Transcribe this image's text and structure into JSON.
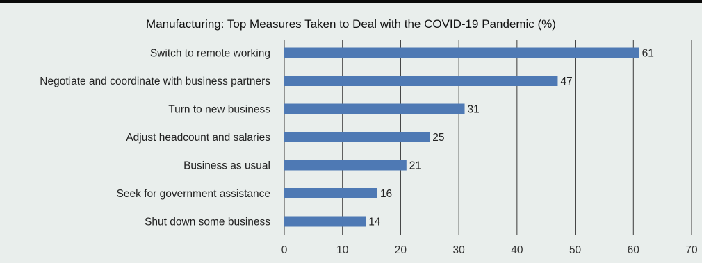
{
  "colors": {
    "background": "#e9eeec",
    "bar": "#4e79b4",
    "grid": "#3a3a3a",
    "top_rule": "#0a0a0a"
  },
  "chart_data": {
    "type": "bar",
    "orientation": "horizontal",
    "title": "Manufacturing: Top Measures Taken to Deal with the COVID-19 Pandemic (%)",
    "categories": [
      "Switch to remote working",
      "Negotiate and coordinate with business partners",
      "Turn to new business",
      "Adjust headcount and salaries",
      "Business as usual",
      "Seek for government assistance",
      "Shut down some business"
    ],
    "values": [
      61,
      47,
      31,
      25,
      21,
      16,
      14
    ],
    "value_labels": [
      "61",
      "47",
      "31",
      "25",
      "21",
      "16",
      "14"
    ],
    "xlim": [
      0,
      70
    ],
    "xticks": [
      0,
      10,
      20,
      30,
      40,
      50,
      60,
      70
    ],
    "xtick_labels": [
      "0",
      "10",
      "20",
      "30",
      "40",
      "50",
      "60",
      "70"
    ],
    "grid": "vertical",
    "legend": "none",
    "xlabel": "",
    "ylabel": ""
  }
}
